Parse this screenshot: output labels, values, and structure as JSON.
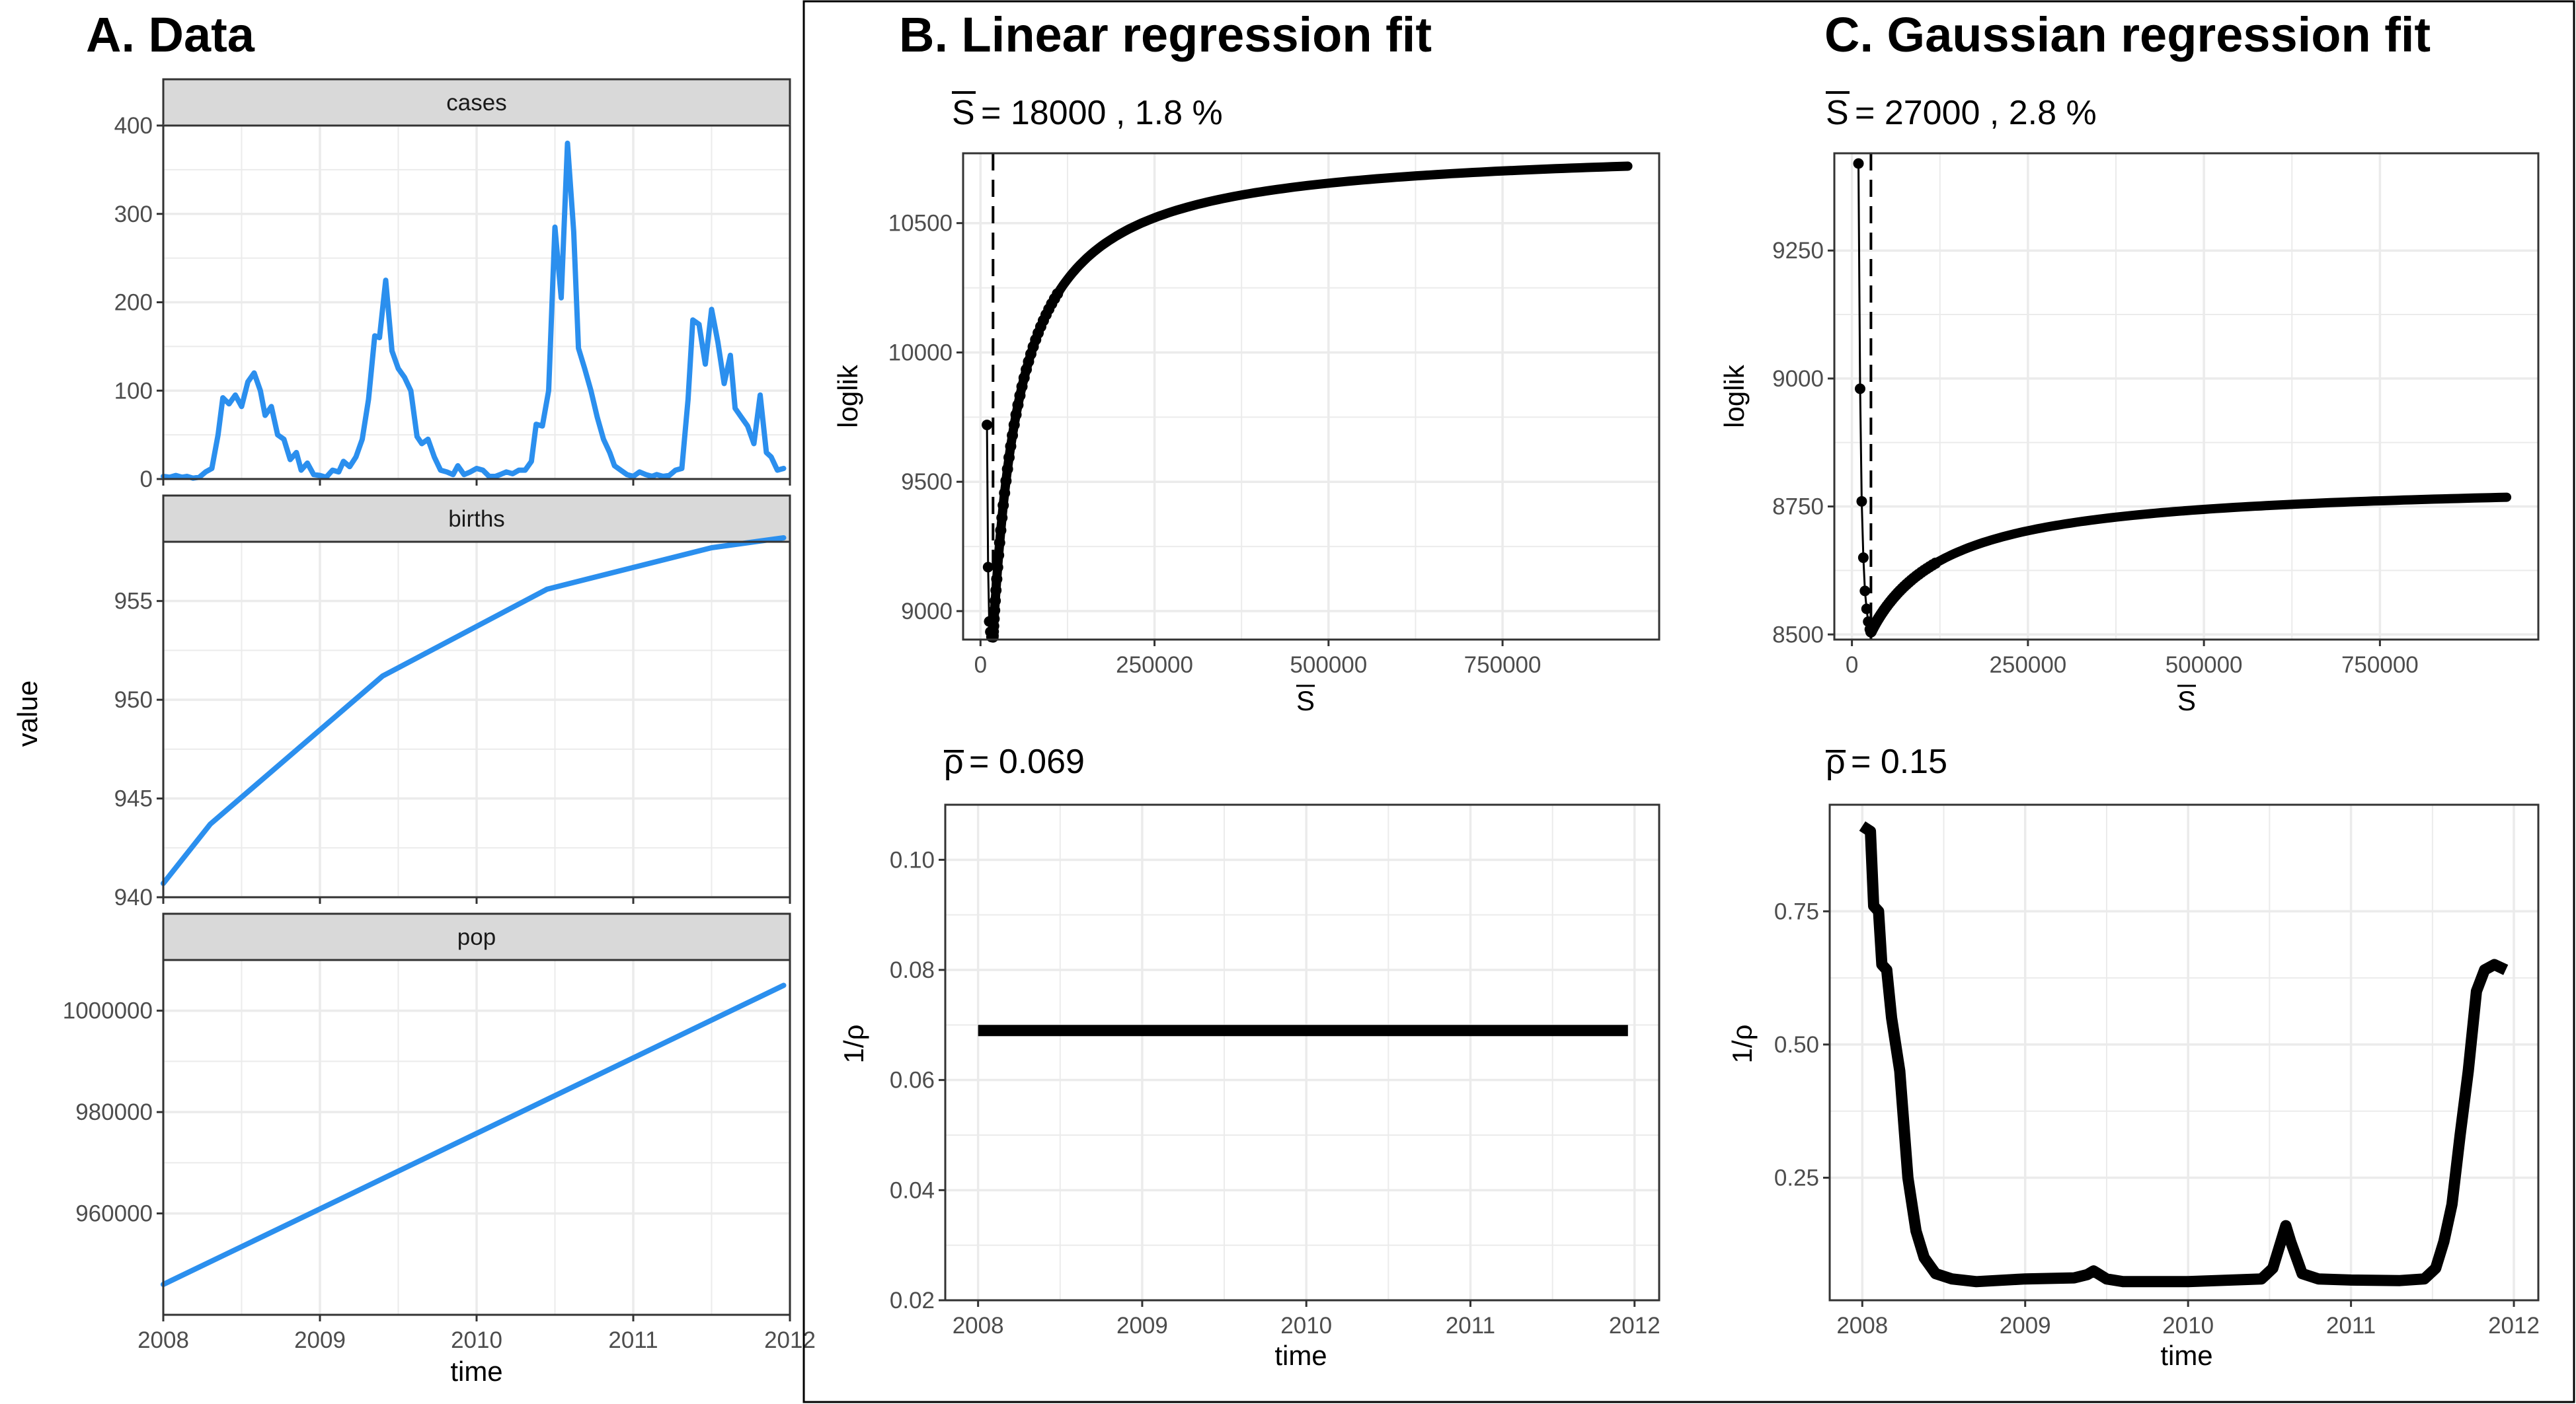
{
  "panels": {
    "a": {
      "title": "A. Data",
      "ylabel": "value",
      "xlabel": "time"
    },
    "b": {
      "title": "B. Linear regression fit",
      "sbar_subtitle": "= 18000 , 1.8 %",
      "rho_subtitle": "= 0.069",
      "loglik_ylabel": "loglik",
      "sbar_xlabel": "S",
      "rho_ylabel": "1/ρ",
      "time_xlabel": "time"
    },
    "c": {
      "title": "C. Gaussian regression fit",
      "sbar_subtitle": "= 27000 , 2.8 %",
      "rho_subtitle": "= 0.15",
      "loglik_ylabel": "loglik",
      "sbar_xlabel": "S",
      "rho_ylabel": "1/ρ",
      "time_xlabel": "time"
    }
  },
  "colors": {
    "data_line": "#2b8fee",
    "fit_line": "#000000",
    "strip_bg": "#d9d9d9",
    "grid": "#ebebeb"
  },
  "chart_data": [
    {
      "id": "cases",
      "type": "line",
      "panel": "A. Data",
      "facet": "cases",
      "xlim": [
        2008,
        2012
      ],
      "ylim": [
        0,
        400
      ],
      "x_ticks": [
        "2008",
        "2009",
        "2010",
        "2011",
        "2012"
      ],
      "y_ticks": [
        0,
        100,
        200,
        300,
        400
      ],
      "x": [
        2008.0,
        2008.04,
        2008.08,
        2008.12,
        2008.15,
        2008.19,
        2008.23,
        2008.27,
        2008.31,
        2008.35,
        2008.38,
        2008.42,
        2008.46,
        2008.5,
        2008.54,
        2008.58,
        2008.62,
        2008.65,
        2008.69,
        2008.73,
        2008.77,
        2008.81,
        2008.85,
        2008.88,
        2008.92,
        2008.96,
        2009.0,
        2009.04,
        2009.08,
        2009.12,
        2009.15,
        2009.19,
        2009.23,
        2009.27,
        2009.31,
        2009.35,
        2009.38,
        2009.42,
        2009.46,
        2009.5,
        2009.54,
        2009.58,
        2009.62,
        2009.65,
        2009.69,
        2009.73,
        2009.77,
        2009.81,
        2009.85,
        2009.88,
        2009.92,
        2009.96,
        2010.0,
        2010.04,
        2010.08,
        2010.12,
        2010.15,
        2010.19,
        2010.23,
        2010.27,
        2010.31,
        2010.35,
        2010.38,
        2010.42,
        2010.46,
        2010.5,
        2010.54,
        2010.58,
        2010.62,
        2010.65,
        2010.69,
        2010.73,
        2010.77,
        2010.81,
        2010.85,
        2010.88,
        2010.92,
        2010.96,
        2011.0,
        2011.04,
        2011.08,
        2011.12,
        2011.15,
        2011.19,
        2011.23,
        2011.27,
        2011.31,
        2011.35,
        2011.38,
        2011.42,
        2011.46,
        2011.5,
        2011.54,
        2011.58,
        2011.62,
        2011.65,
        2011.69,
        2011.73,
        2011.77,
        2011.81,
        2011.85,
        2011.88,
        2011.92,
        2011.96
      ],
      "y": [
        3,
        2,
        4,
        2,
        3,
        1,
        2,
        8,
        12,
        50,
        92,
        85,
        95,
        82,
        110,
        120,
        100,
        72,
        82,
        50,
        45,
        22,
        30,
        10,
        18,
        5,
        4,
        2,
        10,
        8,
        20,
        14,
        25,
        45,
        90,
        162,
        160,
        225,
        145,
        125,
        115,
        100,
        48,
        40,
        45,
        25,
        10,
        8,
        5,
        15,
        5,
        8,
        12,
        10,
        3,
        3,
        5,
        8,
        6,
        10,
        10,
        20,
        62,
        60,
        100,
        285,
        205,
        380,
        280,
        148,
        125,
        100,
        70,
        45,
        30,
        15,
        10,
        5,
        3,
        8,
        5,
        3,
        5,
        3,
        4,
        10,
        12,
        90,
        180,
        175,
        130,
        192,
        155,
        108,
        140,
        80,
        70,
        60,
        40,
        95,
        30,
        25,
        10,
        12
      ]
    },
    {
      "id": "births",
      "type": "line",
      "panel": "A. Data",
      "facet": "births",
      "xlim": [
        2008,
        2012
      ],
      "ylim": [
        940,
        958
      ],
      "x_ticks": [
        "2008",
        "2009",
        "2010",
        "2011",
        "2012"
      ],
      "y_ticks": [
        940,
        945,
        950,
        955
      ],
      "x": [
        2008.0,
        2008.3,
        2009.4,
        2010.45,
        2011.5,
        2011.96
      ],
      "y": [
        940.7,
        943.7,
        951.2,
        955.6,
        957.7,
        958.2
      ]
    },
    {
      "id": "pop",
      "type": "line",
      "panel": "A. Data",
      "facet": "pop",
      "xlim": [
        2008,
        2012
      ],
      "ylim": [
        940000,
        1010000
      ],
      "x_ticks": [
        "2008",
        "2009",
        "2010",
        "2011",
        "2012"
      ],
      "y_ticks": [
        960000,
        980000,
        1000000
      ],
      "x": [
        2008.0,
        2011.96
      ],
      "y": [
        946000,
        1005000
      ]
    },
    {
      "id": "b_loglik",
      "type": "scatter",
      "panel": "B. Linear regression fit",
      "xlabel": "S",
      "ylabel": "loglik",
      "xlim": [
        -25000,
        975000
      ],
      "ylim": [
        8890,
        10770
      ],
      "x_ticks": [
        0,
        250000,
        500000,
        750000
      ],
      "y_ticks": [
        9000,
        9500,
        10000,
        10500
      ],
      "vline_x": 18000,
      "curve": {
        "s_opt": 18000,
        "s_min": 9300,
        "loglik_max": 10800,
        "loglik_min": 8900,
        "k": 40000,
        "s_end": 930000
      },
      "early_points": [
        {
          "x": 9300,
          "y": 9720
        },
        {
          "x": 10900,
          "y": 9170
        },
        {
          "x": 12500,
          "y": 8960
        },
        {
          "x": 14100,
          "y": 8920
        },
        {
          "x": 15700,
          "y": 8900
        },
        {
          "x": 17300,
          "y": 8910
        }
      ]
    },
    {
      "id": "c_loglik",
      "type": "scatter",
      "panel": "C. Gaussian regression fit",
      "xlabel": "S",
      "ylabel": "loglik",
      "xlim": [
        -25000,
        975000
      ],
      "ylim": [
        8490,
        9440
      ],
      "x_ticks": [
        0,
        250000,
        500000,
        750000
      ],
      "y_ticks": [
        8500,
        8750,
        9000,
        9250
      ],
      "vline_x": 27000,
      "curve": {
        "s_opt": 27000,
        "loglik_max": 8800,
        "loglik_min": 8505,
        "k": 110000,
        "s_end": 930000
      },
      "early_points": [
        {
          "x": 9300,
          "y": 9420
        },
        {
          "x": 11600,
          "y": 8980
        },
        {
          "x": 13900,
          "y": 8760
        },
        {
          "x": 16200,
          "y": 8650
        },
        {
          "x": 18500,
          "y": 8585
        },
        {
          "x": 20800,
          "y": 8550
        },
        {
          "x": 23100,
          "y": 8525
        },
        {
          "x": 25400,
          "y": 8510
        },
        {
          "x": 27000,
          "y": 8505
        }
      ]
    },
    {
      "id": "b_rho",
      "type": "line",
      "panel": "B. Linear regression fit",
      "xlabel": "time",
      "ylabel": "1/ρ",
      "xlim": [
        2007.8,
        2012.15
      ],
      "ylim": [
        0.02,
        0.11
      ],
      "x_ticks": [
        "2008",
        "2009",
        "2010",
        "2011",
        "2012"
      ],
      "y_ticks": [
        0.02,
        0.04,
        0.06,
        0.08,
        0.1
      ],
      "y_tick_labels": [
        "0.02",
        "0.04",
        "0.06",
        "0.08",
        "0.10"
      ],
      "x": [
        2008.0,
        2011.96
      ],
      "y": [
        0.069,
        0.069
      ]
    },
    {
      "id": "c_rho",
      "type": "line",
      "panel": "C. Gaussian regression fit",
      "xlabel": "time",
      "ylabel": "1/ρ",
      "xlim": [
        2007.8,
        2012.15
      ],
      "ylim": [
        0.02,
        0.95
      ],
      "x_ticks": [
        "2008",
        "2009",
        "2010",
        "2011",
        "2012"
      ],
      "y_ticks": [
        0.25,
        0.5,
        0.75
      ],
      "y_tick_labels": [
        "0.25",
        "0.50",
        "0.75"
      ],
      "x": [
        2008.0,
        2008.05,
        2008.07,
        2008.1,
        2008.12,
        2008.15,
        2008.18,
        2008.23,
        2008.28,
        2008.33,
        2008.38,
        2008.45,
        2008.55,
        2008.7,
        2009.0,
        2009.3,
        2009.38,
        2009.42,
        2009.5,
        2009.6,
        2010.0,
        2010.45,
        2010.52,
        2010.57,
        2010.6,
        2010.63,
        2010.7,
        2010.8,
        2011.0,
        2011.3,
        2011.45,
        2011.52,
        2011.57,
        2011.62,
        2011.67,
        2011.72,
        2011.77,
        2011.82,
        2011.88,
        2011.95
      ],
      "y": [
        0.91,
        0.9,
        0.76,
        0.75,
        0.65,
        0.64,
        0.55,
        0.45,
        0.25,
        0.15,
        0.1,
        0.07,
        0.06,
        0.055,
        0.06,
        0.062,
        0.068,
        0.075,
        0.06,
        0.055,
        0.055,
        0.06,
        0.08,
        0.13,
        0.16,
        0.13,
        0.07,
        0.06,
        0.058,
        0.057,
        0.06,
        0.08,
        0.13,
        0.2,
        0.33,
        0.45,
        0.6,
        0.64,
        0.65,
        0.64
      ]
    }
  ]
}
